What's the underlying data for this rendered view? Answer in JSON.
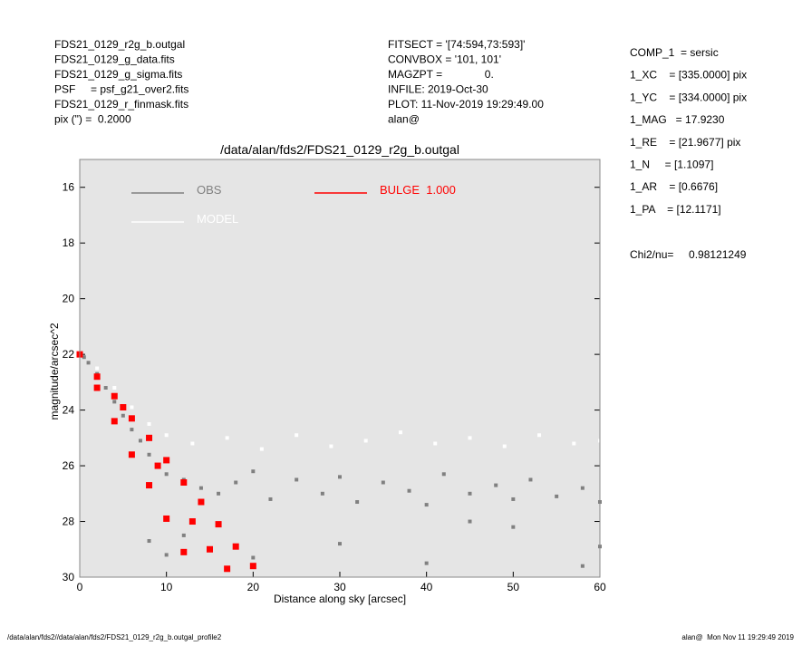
{
  "header": {
    "left": [
      "FDS21_0129_r2g_b.outgal",
      "FDS21_0129_g_data.fits",
      "FDS21_0129_g_sigma.fits",
      "PSF     = psf_g21_over2.fits",
      "FDS21_0129_r_finmask.fits",
      "pix (\") =  0.2000"
    ],
    "middle": [
      "FITSECT = '[74:594,73:593]'",
      "CONVBOX = '101, 101'",
      "MAGZPT =              0.",
      "INFILE: 2019-Oct-30",
      "PLOT: 11-Nov-2019 19:29:49.00",
      "alan@"
    ],
    "right": [
      "COMP_1  = sersic",
      "1_XC    = [335.0000] pix",
      "1_YC    = [334.0000] pix",
      "1_MAG   = 17.9230",
      "1_RE    = [21.9677] pix",
      "1_N     = [1.1097]",
      "1_AR    = [0.6676]",
      "1_PA    = [12.1171]"
    ],
    "chi": "Chi2/nu=     0.98121249"
  },
  "footer": {
    "left": "/data/alan/fds2//data/alan/fds2/FDS21_0129_r2g_b.outgal_profile2",
    "right": "alan@  Mon Nov 11 19:29:49 2019"
  },
  "chart_data": {
    "type": "scatter",
    "title": "/data/alan/fds2/FDS21_0129_r2g_b.outgal",
    "xlabel": "Distance along sky [arcsec]",
    "ylabel": "magnitude/arcsec^2",
    "xlim": [
      0,
      60
    ],
    "ylim": [
      30,
      15
    ],
    "xticks": [
      0,
      10,
      20,
      30,
      40,
      50,
      60
    ],
    "yticks": [
      16,
      18,
      20,
      22,
      24,
      26,
      28,
      30
    ],
    "series": [
      {
        "name": "OBS",
        "color": "#808080",
        "x": [
          0.5,
          1,
          2,
          3,
          4,
          5,
          6,
          7,
          8,
          9,
          10,
          12,
          14,
          16,
          18,
          20,
          22,
          25,
          28,
          30,
          32,
          35,
          38,
          40,
          42,
          45,
          48,
          50,
          52,
          55,
          58,
          60,
          12,
          20,
          30,
          40,
          50,
          58,
          8,
          10,
          60,
          45
        ],
        "values": [
          22.1,
          22.3,
          22.7,
          23.2,
          23.7,
          24.2,
          24.7,
          25.1,
          25.6,
          26.0,
          26.3,
          26.5,
          26.8,
          27.0,
          26.6,
          26.2,
          27.2,
          26.5,
          27.0,
          26.4,
          27.3,
          26.6,
          26.9,
          27.4,
          26.3,
          27.0,
          26.7,
          27.2,
          26.5,
          27.1,
          26.8,
          27.3,
          28.5,
          29.3,
          28.8,
          29.5,
          28.2,
          29.6,
          28.7,
          29.2,
          28.9,
          28.0
        ]
      },
      {
        "name": "MODEL",
        "color": "#ffffff",
        "x": [
          0,
          2,
          4,
          6,
          8,
          10,
          13,
          17,
          21,
          25,
          29,
          33,
          37,
          41,
          45,
          49,
          53,
          57,
          60
        ],
        "values": [
          22.0,
          22.5,
          23.2,
          23.9,
          24.5,
          24.9,
          25.2,
          25.0,
          25.4,
          24.9,
          25.3,
          25.1,
          24.8,
          25.2,
          25.0,
          25.3,
          24.9,
          25.2,
          25.1
        ]
      },
      {
        "name": "BULGE  1.000",
        "color": "#ff0000",
        "x": [
          0,
          2,
          4,
          6,
          8,
          10,
          12,
          2,
          4,
          6,
          8,
          10,
          12,
          14,
          16,
          18,
          20,
          5,
          9,
          13,
          15,
          17
        ],
        "values": [
          22.0,
          23.2,
          24.4,
          25.6,
          26.7,
          27.9,
          29.1,
          22.8,
          23.5,
          24.3,
          25.0,
          25.8,
          26.6,
          27.3,
          28.1,
          28.9,
          29.6,
          23.9,
          26.0,
          28.0,
          29.0,
          29.7
        ]
      }
    ]
  }
}
